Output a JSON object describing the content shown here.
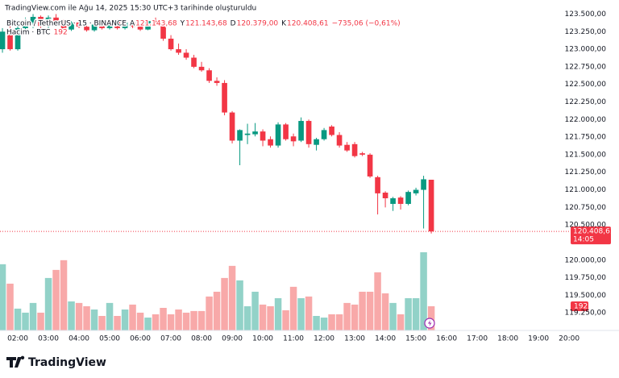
{
  "chart_data": {
    "type": "candlestick",
    "caption": "TradingView.com ile Ağu 14, 2025 15:30 UTC+3 tarihinde oluşturuldu",
    "ohlc_legend": [
      {
        "key": "A",
        "text": "121.143,68"
      },
      {
        "key": "Y",
        "text": "121.143,68"
      },
      {
        "key": "D",
        "text": "120.379,00"
      },
      {
        "key": "K",
        "text": "120.408,61"
      }
    ],
    "change": "−735,06 (−0,61%)",
    "last_price_label": "120.408,61",
    "countdown": "14:05",
    "brand": "TradingView",
    "x": [
      1.5,
      1.75,
      2,
      2.25,
      2.5,
      2.75,
      3,
      3.25,
      3.5,
      3.75,
      4,
      4.25,
      4.5,
      4.75,
      5,
      5.25,
      5.5,
      5.75,
      6,
      6.25,
      6.5,
      6.75,
      7,
      7.25,
      7.5,
      7.75,
      8,
      8.25,
      8.5,
      8.75,
      9,
      9.25,
      9.5,
      9.75,
      10,
      10.25,
      10.5,
      10.75,
      11,
      11.25,
      11.5,
      11.75,
      12,
      12.25,
      12.5,
      12.75,
      13,
      13.25,
      13.5,
      13.75,
      14,
      14.25,
      14.5,
      14.75,
      15,
      15.25,
      15.5
    ],
    "series": [
      {
        "name": "Bitcoin / TetherUS · 15 · BINANCE",
        "up_color": "#089981",
        "down_color": "#f23645",
        "open": [
          123000,
          123250,
          123000,
          123300,
          123380,
          123460,
          123330,
          123450,
          123380,
          123280,
          123380,
          123320,
          123270,
          123350,
          123300,
          123400,
          123300,
          123380,
          123320,
          123280,
          123400,
          123380,
          123150,
          123000,
          122950,
          122880,
          122750,
          122700,
          122550,
          122520,
          122100,
          121700,
          121780,
          121790,
          121830,
          121720,
          121630,
          121930,
          121760,
          121700,
          121980,
          121640,
          121720,
          121900,
          121780,
          121640,
          121650,
          121520,
          121500,
          121180,
          120960,
          120800,
          120890,
          120800,
          120950,
          121000,
          121143.68
        ],
        "high": [
          123300,
          123420,
          123350,
          123450,
          123500,
          123480,
          123480,
          123500,
          123420,
          123400,
          123420,
          123350,
          123380,
          123370,
          123420,
          123420,
          123400,
          123400,
          123350,
          123420,
          123450,
          123420,
          123200,
          123080,
          123000,
          122920,
          122820,
          122730,
          122600,
          122560,
          122120,
          121860,
          121940,
          121950,
          121860,
          121760,
          121960,
          121950,
          121800,
          122030,
          122000,
          121740,
          121880,
          121920,
          121820,
          121680,
          121680,
          121540,
          121520,
          121200,
          120980,
          120900,
          120910,
          120990,
          121030,
          121200,
          121143.68
        ],
        "low": [
          122950,
          122980,
          122980,
          123250,
          123300,
          123300,
          123300,
          123350,
          123250,
          123260,
          123300,
          123250,
          123250,
          123280,
          123280,
          123280,
          123280,
          123300,
          123260,
          123270,
          123350,
          123120,
          122980,
          122920,
          122850,
          122730,
          122680,
          122520,
          122480,
          122060,
          121660,
          121350,
          121650,
          121760,
          121620,
          121600,
          121600,
          121700,
          121620,
          121680,
          121600,
          121560,
          121700,
          121760,
          121600,
          121540,
          121460,
          121480,
          121170,
          120650,
          120750,
          120700,
          120720,
          120780,
          120920,
          120450,
          120379
        ],
        "close": [
          123250,
          123000,
          123300,
          123400,
          123460,
          123330,
          123450,
          123380,
          123280,
          123380,
          123320,
          123270,
          123350,
          123300,
          123400,
          123300,
          123380,
          123320,
          123280,
          123400,
          123380,
          123150,
          123000,
          122950,
          122880,
          122750,
          122700,
          122550,
          122520,
          122100,
          121700,
          121850,
          121800,
          121830,
          121700,
          121630,
          121930,
          121720,
          121690,
          121980,
          121650,
          121720,
          121850,
          121780,
          121630,
          121560,
          121480,
          121500,
          121190,
          120950,
          120880,
          120880,
          120800,
          120970,
          121000,
          121150,
          120408.61
        ]
      },
      {
        "name": "Hacim · BTC",
        "axis": "y2",
        "up_color": "#92d2c8",
        "down_color": "#f8a9a9",
        "values": [
          525,
          371,
          173,
          141,
          218,
          141,
          416,
          480,
          557,
          230,
          218,
          192,
          166,
          115,
          218,
          115,
          166,
          205,
          141,
          102,
          128,
          179,
          128,
          166,
          141,
          154,
          154,
          269,
          307,
          416,
          512,
          397,
          192,
          307,
          205,
          192,
          256,
          160,
          346,
          256,
          269,
          115,
          102,
          128,
          128,
          218,
          205,
          307,
          307,
          461,
          294,
          218,
          128,
          256,
          256,
          620,
          192
        ]
      }
    ],
    "xlim": [
      1.42,
      20.05
    ],
    "xticks": [
      {
        "value": 2,
        "label": "02:00"
      },
      {
        "value": 3,
        "label": "03:00"
      },
      {
        "value": 4,
        "label": "04:00"
      },
      {
        "value": 5,
        "label": "05:00"
      },
      {
        "value": 6,
        "label": "06:00"
      },
      {
        "value": 7,
        "label": "07:00"
      },
      {
        "value": 8,
        "label": "08:00"
      },
      {
        "value": 9,
        "label": "09:00"
      },
      {
        "value": 10,
        "label": "10:00"
      },
      {
        "value": 11,
        "label": "11:00"
      },
      {
        "value": 12,
        "label": "12:00"
      },
      {
        "value": 13,
        "label": "13:00"
      },
      {
        "value": 14,
        "label": "14:00"
      },
      {
        "value": 15,
        "label": "15:00"
      },
      {
        "value": 16,
        "label": "16:00"
      },
      {
        "value": 17,
        "label": "17:00"
      },
      {
        "value": 18,
        "label": "18:00"
      },
      {
        "value": 19,
        "label": "19:00"
      },
      {
        "value": 20,
        "label": "20:00"
      }
    ],
    "ylim": [
      119000,
      123700
    ],
    "yticks": [
      {
        "value": 123500,
        "label": "123.500,00"
      },
      {
        "value": 123250,
        "label": "123.250,00"
      },
      {
        "value": 123000,
        "label": "123.000,00"
      },
      {
        "value": 122750,
        "label": "122.750,00"
      },
      {
        "value": 122500,
        "label": "122.500,00"
      },
      {
        "value": 122250,
        "label": "122.250,00"
      },
      {
        "value": 122000,
        "label": "122.000,00"
      },
      {
        "value": 121750,
        "label": "121.750,00"
      },
      {
        "value": 121500,
        "label": "121.500,00"
      },
      {
        "value": 121250,
        "label": "121.250,00"
      },
      {
        "value": 121000,
        "label": "121.000,00"
      },
      {
        "value": 120750,
        "label": "120.750,00"
      },
      {
        "value": 120500,
        "label": "120.500,00"
      },
      {
        "value": 120000,
        "label": "120.000,00"
      },
      {
        "value": 119750,
        "label": "119.750,00"
      },
      {
        "value": 119500,
        "label": "119.500,00"
      },
      {
        "value": 119250,
        "label": "119.250,00"
      }
    ],
    "y2lim": [
      0,
      2620
    ],
    "grid": false
  }
}
